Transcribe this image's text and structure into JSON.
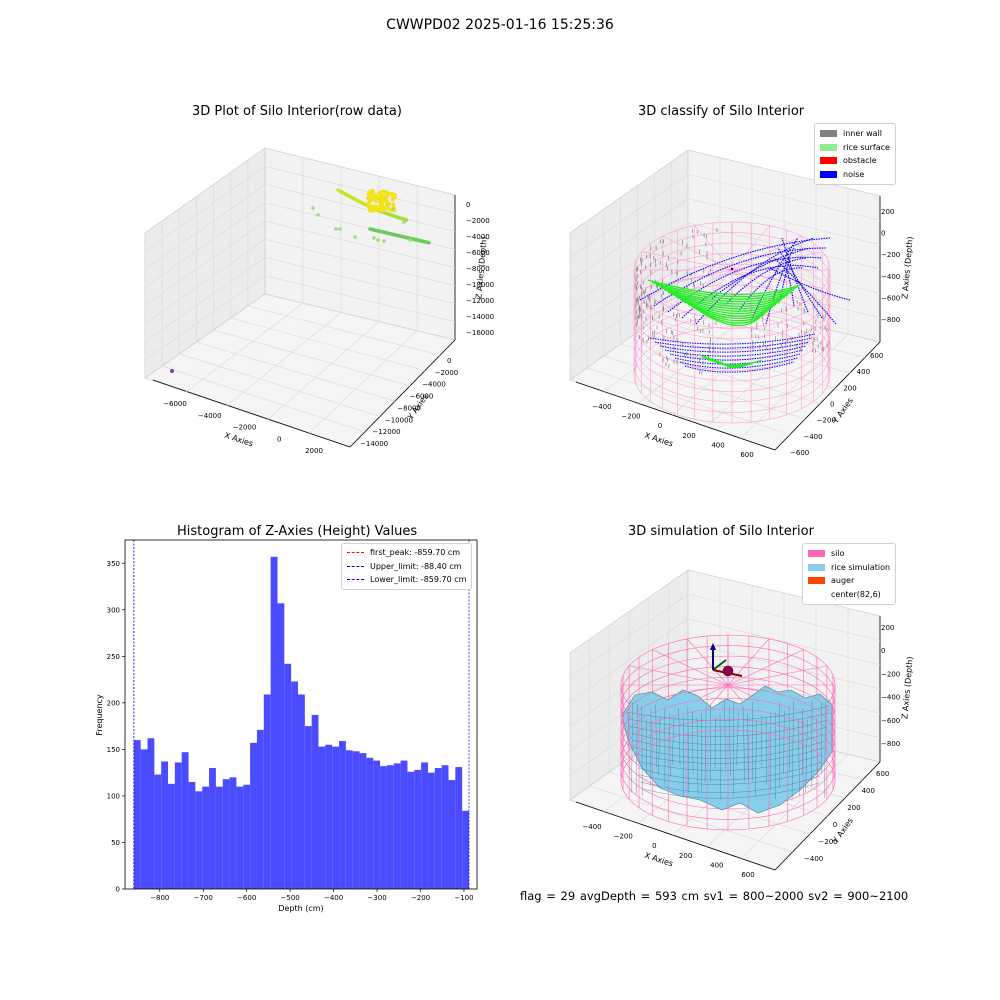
{
  "figure": {
    "title": "CWWPD02 2025-01-16 15:25:36"
  },
  "status_line": "flag = 29   avgDepth = 593 cm   sv1 = 800~2000   sv2 = 900~2100",
  "colors": {
    "inner_wall": "#808080",
    "rice_surface": "#90ee90",
    "obstacle": "#ff0000",
    "noise": "#0000ff",
    "silo": "#ff69b4",
    "rice_simulation": "#87ceeb",
    "auger": "#ff4500",
    "hist_bar": "#4b4bff",
    "first_peak": "#ff0000",
    "limits": "#0000cd"
  },
  "chart_data": [
    {
      "type": "scatter",
      "title": "3D Plot of Silo Interior(row data)",
      "xlabel": "X Axies",
      "ylabel": "Y Axies",
      "zlabel": "Z Axies (Depth)",
      "x_ticks": [
        "−6000",
        "−4000",
        "−2000",
        "0",
        "2000"
      ],
      "y_ticks": [
        "0",
        "−2000",
        "−4000",
        "−6000",
        "−8000",
        "−10000",
        "−12000",
        "−14000"
      ],
      "z_ticks": [
        "0",
        "−2000",
        "−4000",
        "−6000",
        "−8000",
        "−10000",
        "−12000",
        "−14000",
        "−16000"
      ],
      "xlim": [
        -6800,
        2900
      ],
      "ylim": [
        -14800,
        800
      ],
      "zlim": [
        -16800,
        800
      ]
    },
    {
      "type": "scatter",
      "title": "3D classify of Silo Interior",
      "xlabel": "X Axies",
      "ylabel": "Y Axies",
      "zlabel": "Z Axies (Depth)",
      "x_ticks": [
        "−400",
        "−200",
        "0",
        "200",
        "400",
        "600"
      ],
      "y_ticks": [
        "600",
        "400",
        "200",
        "0",
        "−200",
        "−400",
        "−600"
      ],
      "z_ticks": [
        "200",
        "0",
        "−200",
        "−400",
        "−600",
        "−800"
      ],
      "legend": [
        "inner wall",
        "rice surface",
        "obstacle",
        "noise"
      ],
      "legend_placement": "upper-right"
    },
    {
      "type": "bar",
      "title": "Histogram of Z-Axies (Height) Values",
      "xlabel": "Depth (cm)",
      "ylabel": "Frequency",
      "xlim": [
        -880,
        -70
      ],
      "ylim": [
        0,
        375
      ],
      "x_ticks": [
        "−800",
        "−700",
        "−600",
        "−500",
        "−400",
        "−300",
        "−200",
        "−100"
      ],
      "y_ticks": [
        "0",
        "50",
        "100",
        "150",
        "200",
        "250",
        "300",
        "350"
      ],
      "bin_start": -859.7,
      "bin_end": -88.4,
      "values": [
        160,
        150,
        162,
        123,
        137,
        113,
        136,
        147,
        115,
        105,
        110,
        130,
        110,
        118,
        120,
        110,
        112,
        157,
        171,
        209,
        357,
        307,
        242,
        223,
        209,
        175,
        187,
        153,
        155,
        153,
        159,
        149,
        148,
        146,
        141,
        138,
        132,
        133,
        135,
        138,
        126,
        128,
        136,
        125,
        130,
        133,
        117,
        131,
        84
      ],
      "lines": [
        {
          "label": "first_peak: -859.70 cm",
          "x": -859.7
        },
        {
          "label": "Upper_limit: -88.40 cm",
          "x": -88.4
        },
        {
          "label": "Lower_limit: -859.70 cm",
          "x": -859.7
        }
      ],
      "legend_placement": "upper-right"
    },
    {
      "type": "area",
      "title": "3D simulation of Silo Interior",
      "xlabel": "X Axies",
      "ylabel": "Y Axies",
      "zlabel": "Z Axies (Depth)",
      "x_ticks": [
        "−400",
        "−200",
        "0",
        "200",
        "400",
        "600"
      ],
      "y_ticks": [
        "600",
        "400",
        "200",
        "0",
        "−200",
        "−400"
      ],
      "z_ticks": [
        "200",
        "0",
        "−200",
        "−400",
        "−600",
        "−800"
      ],
      "legend": [
        "silo",
        "rice simulation",
        "auger",
        "center(82,6)"
      ],
      "legend_placement": "upper-right"
    }
  ]
}
